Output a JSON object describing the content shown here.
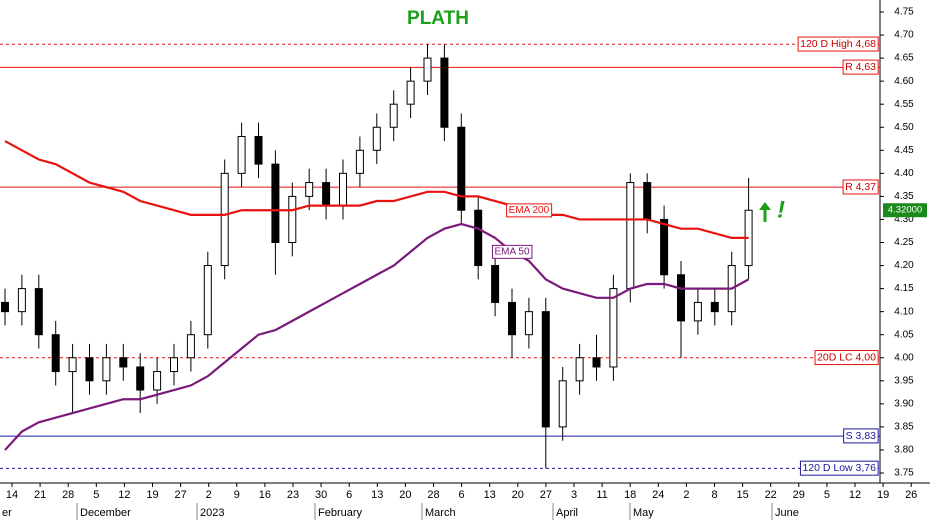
{
  "chart_data": {
    "type": "candlestick",
    "title": "PLATH",
    "ylim": [
      3.75,
      4.75
    ],
    "yticks": [
      4.75,
      {
        "value": 4.7,
        "label": "4.70"
      },
      4.65,
      {
        "value": 4.6,
        "label": "4.60"
      },
      4.55,
      {
        "value": 4.5,
        "label": "4.50"
      },
      4.45,
      {
        "value": 4.4,
        "label": "4.40"
      },
      4.35,
      {
        "value": 4.3,
        "label": "4.30"
      },
      4.25,
      {
        "value": 4.2,
        "label": "4.20"
      },
      4.15,
      {
        "value": 4.1,
        "label": "4.10"
      },
      4.05,
      {
        "value": 4.0,
        "label": "4.00"
      },
      3.95,
      {
        "value": 3.9,
        "label": "3.90"
      },
      3.85,
      {
        "value": 3.8,
        "label": "3.80"
      },
      3.75
    ],
    "xtick_labels": [
      "14",
      "21",
      "28",
      "5",
      "12",
      "19",
      "27",
      "2",
      "9",
      "16",
      "23",
      "30",
      "6",
      "13",
      "20",
      "28",
      "6",
      "13",
      "20",
      "27",
      "3",
      "11",
      "18",
      "24",
      "2",
      "8",
      "15",
      "22",
      "29",
      "5",
      "12",
      "19",
      "26"
    ],
    "month_labels": [
      "er",
      "December",
      "2023",
      "February",
      "March",
      "April",
      "May",
      "June"
    ],
    "open": [
      4.12,
      4.1,
      4.15,
      4.05,
      3.97,
      4.0,
      3.95,
      4.0,
      3.98,
      3.93,
      3.97,
      4.0,
      4.05,
      4.2,
      4.4,
      4.48,
      4.42,
      4.25,
      4.35,
      4.38,
      4.33,
      4.4,
      4.45,
      4.5,
      4.55,
      4.6,
      4.65,
      4.5,
      4.32,
      4.2,
      4.12,
      4.05,
      4.1,
      3.85,
      3.95,
      4.0,
      3.98,
      4.15,
      4.38,
      4.3,
      4.18,
      4.08,
      4.12,
      4.1,
      4.2
    ],
    "high": [
      4.15,
      4.18,
      4.18,
      4.08,
      4.03,
      4.03,
      4.03,
      4.03,
      4.01,
      4.0,
      4.03,
      4.08,
      4.23,
      4.43,
      4.51,
      4.51,
      4.45,
      4.38,
      4.41,
      4.41,
      4.43,
      4.48,
      4.53,
      4.58,
      4.63,
      4.68,
      4.68,
      4.53,
      4.35,
      4.23,
      4.15,
      4.13,
      4.13,
      3.98,
      4.03,
      4.05,
      4.18,
      4.4,
      4.4,
      4.33,
      4.21,
      4.15,
      4.15,
      4.23,
      4.39
    ],
    "low": [
      4.07,
      4.07,
      4.02,
      3.94,
      3.88,
      3.92,
      3.92,
      3.95,
      3.88,
      3.9,
      3.94,
      3.97,
      4.02,
      4.17,
      4.37,
      4.39,
      4.18,
      4.22,
      4.32,
      4.3,
      4.3,
      4.37,
      4.42,
      4.47,
      4.52,
      4.57,
      4.47,
      4.29,
      4.17,
      4.09,
      4.0,
      4.02,
      3.76,
      3.82,
      3.92,
      3.95,
      3.95,
      4.12,
      4.27,
      4.15,
      4.0,
      4.05,
      4.07,
      4.07,
      4.17
    ],
    "close": [
      4.1,
      4.15,
      4.05,
      3.97,
      4.0,
      3.95,
      4.0,
      3.98,
      3.93,
      3.97,
      4.0,
      4.05,
      4.2,
      4.4,
      4.48,
      4.42,
      4.25,
      4.35,
      4.38,
      4.33,
      4.4,
      4.45,
      4.5,
      4.55,
      4.6,
      4.65,
      4.5,
      4.32,
      4.2,
      4.12,
      4.05,
      4.1,
      3.85,
      3.95,
      4.0,
      3.98,
      4.15,
      4.38,
      4.3,
      4.18,
      4.08,
      4.12,
      4.1,
      4.2,
      4.32
    ],
    "series": [
      {
        "name": "EMA 200",
        "color": "#e8130f",
        "values": [
          4.47,
          4.45,
          4.43,
          4.42,
          4.4,
          4.38,
          4.37,
          4.36,
          4.34,
          4.33,
          4.32,
          4.31,
          4.31,
          4.31,
          4.32,
          4.32,
          4.32,
          4.32,
          4.33,
          4.33,
          4.33,
          4.33,
          4.34,
          4.34,
          4.35,
          4.36,
          4.36,
          4.35,
          4.35,
          4.34,
          4.33,
          4.32,
          4.31,
          4.31,
          4.3,
          4.3,
          4.3,
          4.3,
          4.3,
          4.29,
          4.28,
          4.28,
          4.27,
          4.26,
          4.26
        ]
      },
      {
        "name": "EMA 50",
        "color": "#7a1a7a",
        "values": [
          3.8,
          3.84,
          3.86,
          3.87,
          3.88,
          3.89,
          3.9,
          3.91,
          3.91,
          3.92,
          3.93,
          3.94,
          3.96,
          3.99,
          4.02,
          4.05,
          4.06,
          4.08,
          4.1,
          4.12,
          4.14,
          4.16,
          4.18,
          4.2,
          4.23,
          4.26,
          4.28,
          4.29,
          4.28,
          4.26,
          4.23,
          4.21,
          4.17,
          4.15,
          4.14,
          4.13,
          4.13,
          4.15,
          4.16,
          4.16,
          4.15,
          4.15,
          4.15,
          4.15,
          4.17
        ]
      }
    ],
    "levels": [
      {
        "value": 4.68,
        "label": "120 D High 4,68",
        "color": "#e8130f",
        "dashed": true
      },
      {
        "value": 4.63,
        "label": "R 4,63",
        "color": "#e8130f",
        "dashed": false
      },
      {
        "value": 4.37,
        "label": "R 4,37",
        "color": "#e8130f",
        "dashed": false
      },
      {
        "value": 4.0,
        "label": "20D LC 4,00",
        "color": "#e8130f",
        "dashed": true
      },
      {
        "value": 3.83,
        "label": "S 3,83",
        "color": "#1a1aa0",
        "dashed": false
      },
      {
        "value": 3.76,
        "label": "120 D Low 3,76",
        "color": "#1a1aa0",
        "dashed": true
      }
    ],
    "last_price": {
      "value": 4.32,
      "label": "4.32000"
    },
    "annotation": "!"
  }
}
